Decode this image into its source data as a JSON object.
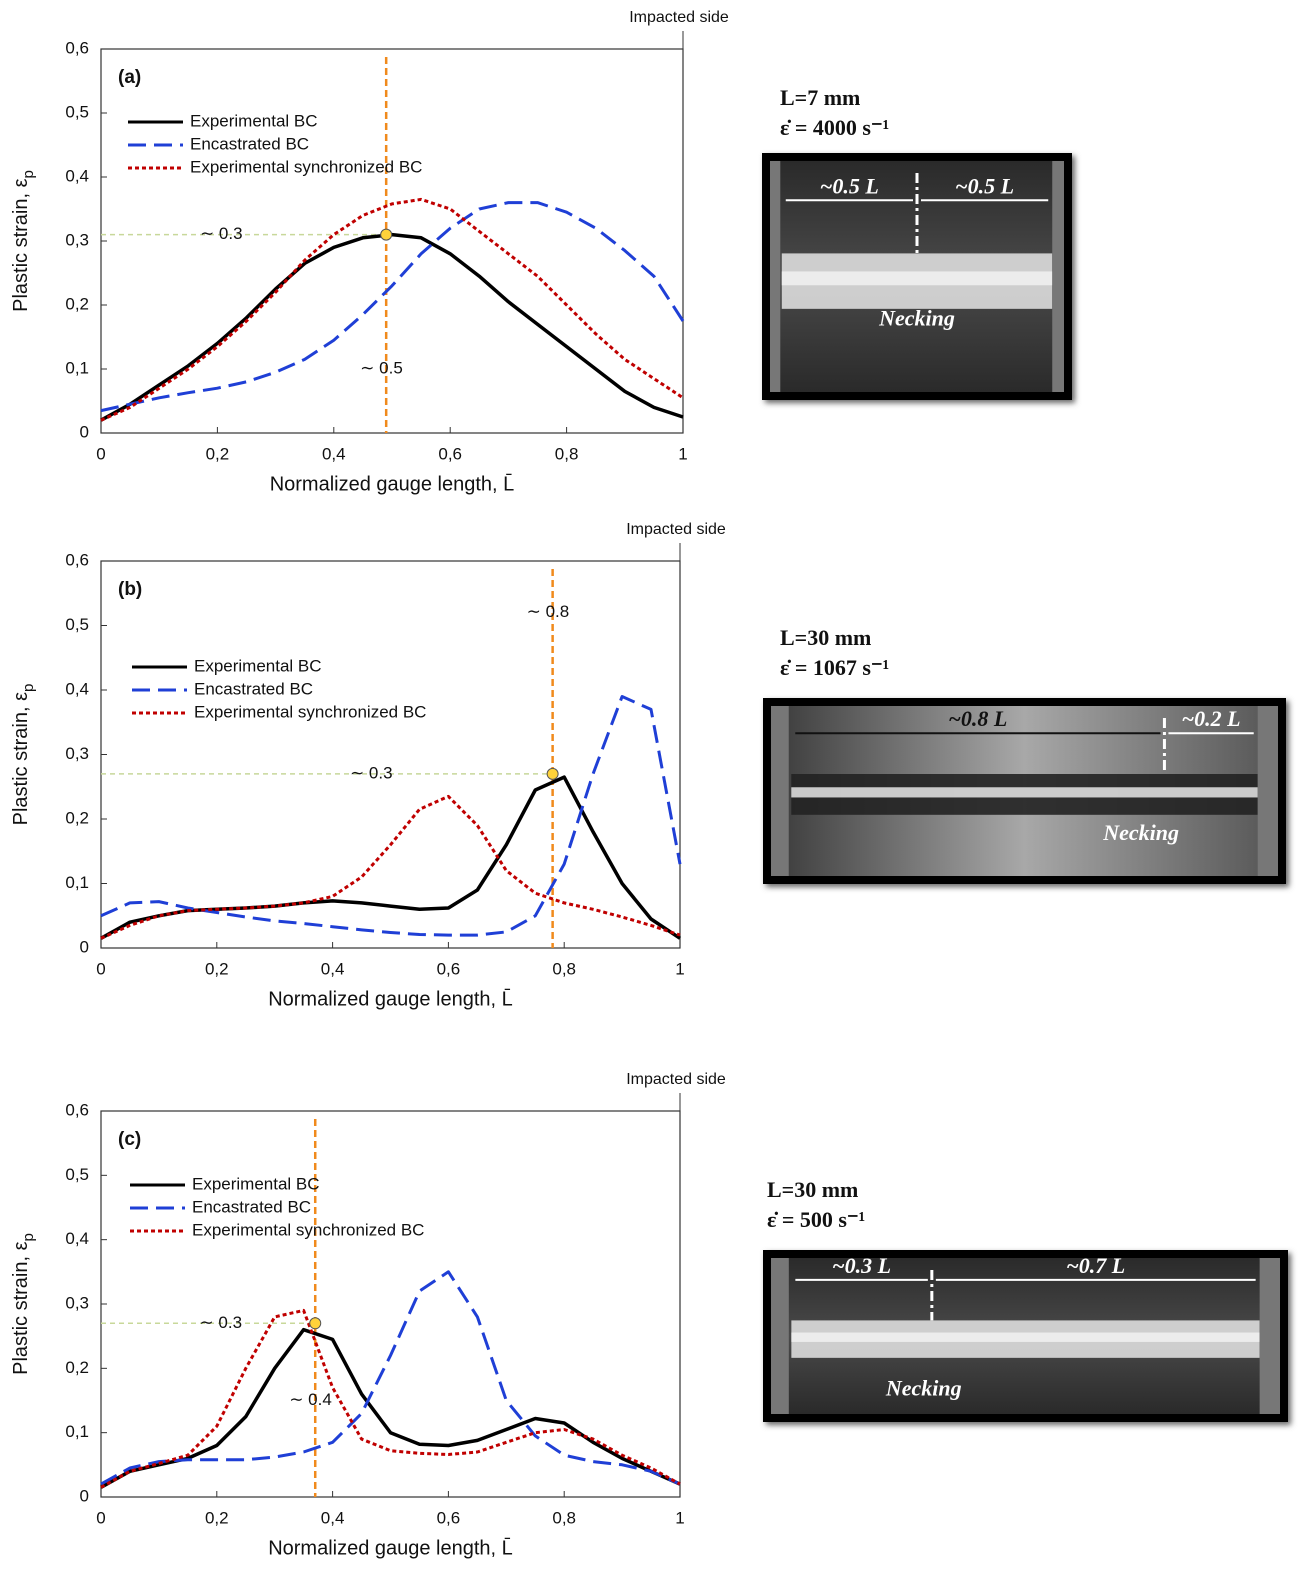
{
  "chart_data": [
    {
      "type": "line",
      "panel_label": "(a)",
      "side_note": "Impacted side",
      "xlabel": "Normalized gauge length, L̄",
      "ylabel": "Plastic strain, ε",
      "ylabel_sub": "p",
      "x": [
        0,
        0.05,
        0.1,
        0.15,
        0.2,
        0.25,
        0.3,
        0.35,
        0.4,
        0.45,
        0.5,
        0.55,
        0.6,
        0.65,
        0.7,
        0.75,
        0.8,
        0.85,
        0.9,
        0.95,
        1
      ],
      "series": [
        {
          "name": "Experimental BC",
          "color": "#000000",
          "dash": "solid",
          "values": [
            0.02,
            0.045,
            0.075,
            0.105,
            0.14,
            0.18,
            0.225,
            0.265,
            0.29,
            0.305,
            0.31,
            0.305,
            0.28,
            0.245,
            0.205,
            0.17,
            0.135,
            0.1,
            0.065,
            0.04,
            0.025
          ]
        },
        {
          "name": "Encastrated BC",
          "color": "#1f3fd6",
          "dash": "dashed",
          "values": [
            0.035,
            0.045,
            0.055,
            0.063,
            0.07,
            0.08,
            0.095,
            0.115,
            0.145,
            0.185,
            0.23,
            0.28,
            0.32,
            0.35,
            0.36,
            0.36,
            0.345,
            0.32,
            0.285,
            0.245,
            0.175
          ]
        },
        {
          "name": "Experimental synchronized BC",
          "color": "#c00000",
          "dash": "dotted",
          "values": [
            0.02,
            0.04,
            0.07,
            0.1,
            0.135,
            0.175,
            0.22,
            0.27,
            0.31,
            0.34,
            0.358,
            0.365,
            0.35,
            0.315,
            0.28,
            0.245,
            0.2,
            0.155,
            0.115,
            0.085,
            0.055
          ]
        }
      ],
      "xlim": [
        0,
        1
      ],
      "ylim": [
        0,
        0.6
      ],
      "xticks": [
        0,
        {
          "value": 0.2,
          "label": "0,2"
        },
        {
          "value": 0.4,
          "label": "0,4"
        },
        {
          "value": 0.6,
          "label": "0,6"
        },
        {
          "value": 0.8,
          "label": "0,8"
        },
        1
      ],
      "yticks": [
        0,
        {
          "value": 0.1,
          "label": "0,1"
        },
        {
          "value": 0.2,
          "label": "0,2"
        },
        {
          "value": 0.3,
          "label": "0,3"
        },
        {
          "value": 0.4,
          "label": "0,4"
        },
        {
          "value": 0.5,
          "label": "0,5"
        },
        {
          "value": 0.6,
          "label": "0,6"
        }
      ],
      "vline": 0.49,
      "hline": 0.31,
      "vline_color": "#f08a1c",
      "hline_color": "#c8d89a",
      "hline_label": "∼ 0.3",
      "vline_label": "∼ 0.5"
    },
    {
      "type": "line",
      "panel_label": "(b)",
      "side_note": "Impacted side",
      "xlabel": "Normalized gauge length, L̄",
      "ylabel": "Plastic strain, ε",
      "ylabel_sub": "p",
      "x": [
        0,
        0.05,
        0.1,
        0.15,
        0.2,
        0.25,
        0.3,
        0.35,
        0.4,
        0.45,
        0.5,
        0.55,
        0.6,
        0.65,
        0.7,
        0.75,
        0.8,
        0.85,
        0.9,
        0.95,
        1
      ],
      "series": [
        {
          "name": "Experimental BC",
          "color": "#000000",
          "dash": "solid",
          "values": [
            0.015,
            0.04,
            0.05,
            0.058,
            0.06,
            0.062,
            0.065,
            0.07,
            0.073,
            0.07,
            0.065,
            0.06,
            0.062,
            0.09,
            0.16,
            0.245,
            0.265,
            0.18,
            0.1,
            0.045,
            0.015
          ]
        },
        {
          "name": "Encastrated BC",
          "color": "#1f3fd6",
          "dash": "dashed",
          "values": [
            0.05,
            0.07,
            0.072,
            0.062,
            0.055,
            0.048,
            0.042,
            0.038,
            0.033,
            0.028,
            0.024,
            0.021,
            0.02,
            0.02,
            0.025,
            0.05,
            0.13,
            0.27,
            0.39,
            0.37,
            0.13
          ]
        },
        {
          "name": "Experimental synchronized BC",
          "color": "#c00000",
          "dash": "dotted",
          "values": [
            0.015,
            0.035,
            0.05,
            0.058,
            0.06,
            0.062,
            0.065,
            0.07,
            0.08,
            0.11,
            0.16,
            0.215,
            0.235,
            0.19,
            0.12,
            0.085,
            0.07,
            0.06,
            0.048,
            0.035,
            0.02
          ]
        }
      ],
      "xlim": [
        0,
        1
      ],
      "ylim": [
        0,
        0.6
      ],
      "xticks": [
        0,
        {
          "value": 0.2,
          "label": "0,2"
        },
        {
          "value": 0.4,
          "label": "0,4"
        },
        {
          "value": 0.6,
          "label": "0,6"
        },
        {
          "value": 0.8,
          "label": "0,8"
        },
        1
      ],
      "yticks": [
        0,
        {
          "value": 0.1,
          "label": "0,1"
        },
        {
          "value": 0.2,
          "label": "0,2"
        },
        {
          "value": 0.3,
          "label": "0,3"
        },
        {
          "value": 0.4,
          "label": "0,4"
        },
        {
          "value": 0.5,
          "label": "0,5"
        },
        {
          "value": 0.6,
          "label": "0,6"
        }
      ],
      "vline": 0.78,
      "hline": 0.27,
      "vline_color": "#f08a1c",
      "hline_color": "#c8d89a",
      "hline_label": "∼ 0.3",
      "vline_label": "∼ 0.8"
    },
    {
      "type": "line",
      "panel_label": "(c)",
      "side_note": "Impacted side",
      "xlabel": "Normalized gauge length, L̄",
      "ylabel": "Plastic strain, ε",
      "ylabel_sub": "p",
      "x": [
        0,
        0.05,
        0.1,
        0.15,
        0.2,
        0.25,
        0.3,
        0.35,
        0.4,
        0.45,
        0.5,
        0.55,
        0.6,
        0.65,
        0.7,
        0.75,
        0.8,
        0.85,
        0.9,
        0.95,
        1
      ],
      "series": [
        {
          "name": "Experimental BC",
          "color": "#000000",
          "dash": "solid",
          "values": [
            0.015,
            0.04,
            0.05,
            0.06,
            0.08,
            0.125,
            0.2,
            0.26,
            0.245,
            0.16,
            0.1,
            0.082,
            0.08,
            0.088,
            0.105,
            0.122,
            0.115,
            0.085,
            0.06,
            0.04,
            0.02
          ]
        },
        {
          "name": "Encastrated BC",
          "color": "#1f3fd6",
          "dash": "dashed",
          "values": [
            0.02,
            0.045,
            0.055,
            0.058,
            0.058,
            0.058,
            0.062,
            0.07,
            0.085,
            0.13,
            0.22,
            0.32,
            0.35,
            0.28,
            0.15,
            0.095,
            0.065,
            0.055,
            0.05,
            0.04,
            0.02
          ]
        },
        {
          "name": "Experimental synchronized BC",
          "color": "#c00000",
          "dash": "dotted",
          "values": [
            0.015,
            0.04,
            0.052,
            0.065,
            0.11,
            0.2,
            0.28,
            0.29,
            0.17,
            0.09,
            0.072,
            0.068,
            0.066,
            0.07,
            0.085,
            0.1,
            0.105,
            0.09,
            0.065,
            0.045,
            0.02
          ]
        }
      ],
      "xlim": [
        0,
        1
      ],
      "ylim": [
        0,
        0.6
      ],
      "xticks": [
        0,
        {
          "value": 0.2,
          "label": "0,2"
        },
        {
          "value": 0.4,
          "label": "0,4"
        },
        {
          "value": 0.6,
          "label": "0,6"
        },
        {
          "value": 0.8,
          "label": "0,8"
        },
        1
      ],
      "yticks": [
        0,
        {
          "value": 0.1,
          "label": "0,1"
        },
        {
          "value": 0.2,
          "label": "0,2"
        },
        {
          "value": 0.3,
          "label": "0,3"
        },
        {
          "value": 0.4,
          "label": "0,4"
        },
        {
          "value": 0.5,
          "label": "0,5"
        },
        {
          "value": 0.6,
          "label": "0,6"
        }
      ],
      "vline": 0.37,
      "hline": 0.27,
      "vline_color": "#f08a1c",
      "hline_color": "#c8d89a",
      "hline_label": "∼ 0.3",
      "vline_label": "∼ 0.4"
    }
  ],
  "photos": [
    {
      "length": "L=7 mm",
      "rate": "ε̇ = 4000 s⁻¹",
      "left_part": "~0.5 L",
      "right_part": "~0.5 L",
      "note": "Necking"
    },
    {
      "length": "L=30 mm",
      "rate": "ε̇ = 1067 s⁻¹",
      "left_part": "~0.8 L",
      "right_part": "~0.2 L",
      "note": "Necking"
    },
    {
      "length": "L=30 mm",
      "rate": "ε̇ = 500 s⁻¹",
      "left_part": "~0.3 L",
      "right_part": "~0.7 L",
      "note": "Necking"
    }
  ]
}
